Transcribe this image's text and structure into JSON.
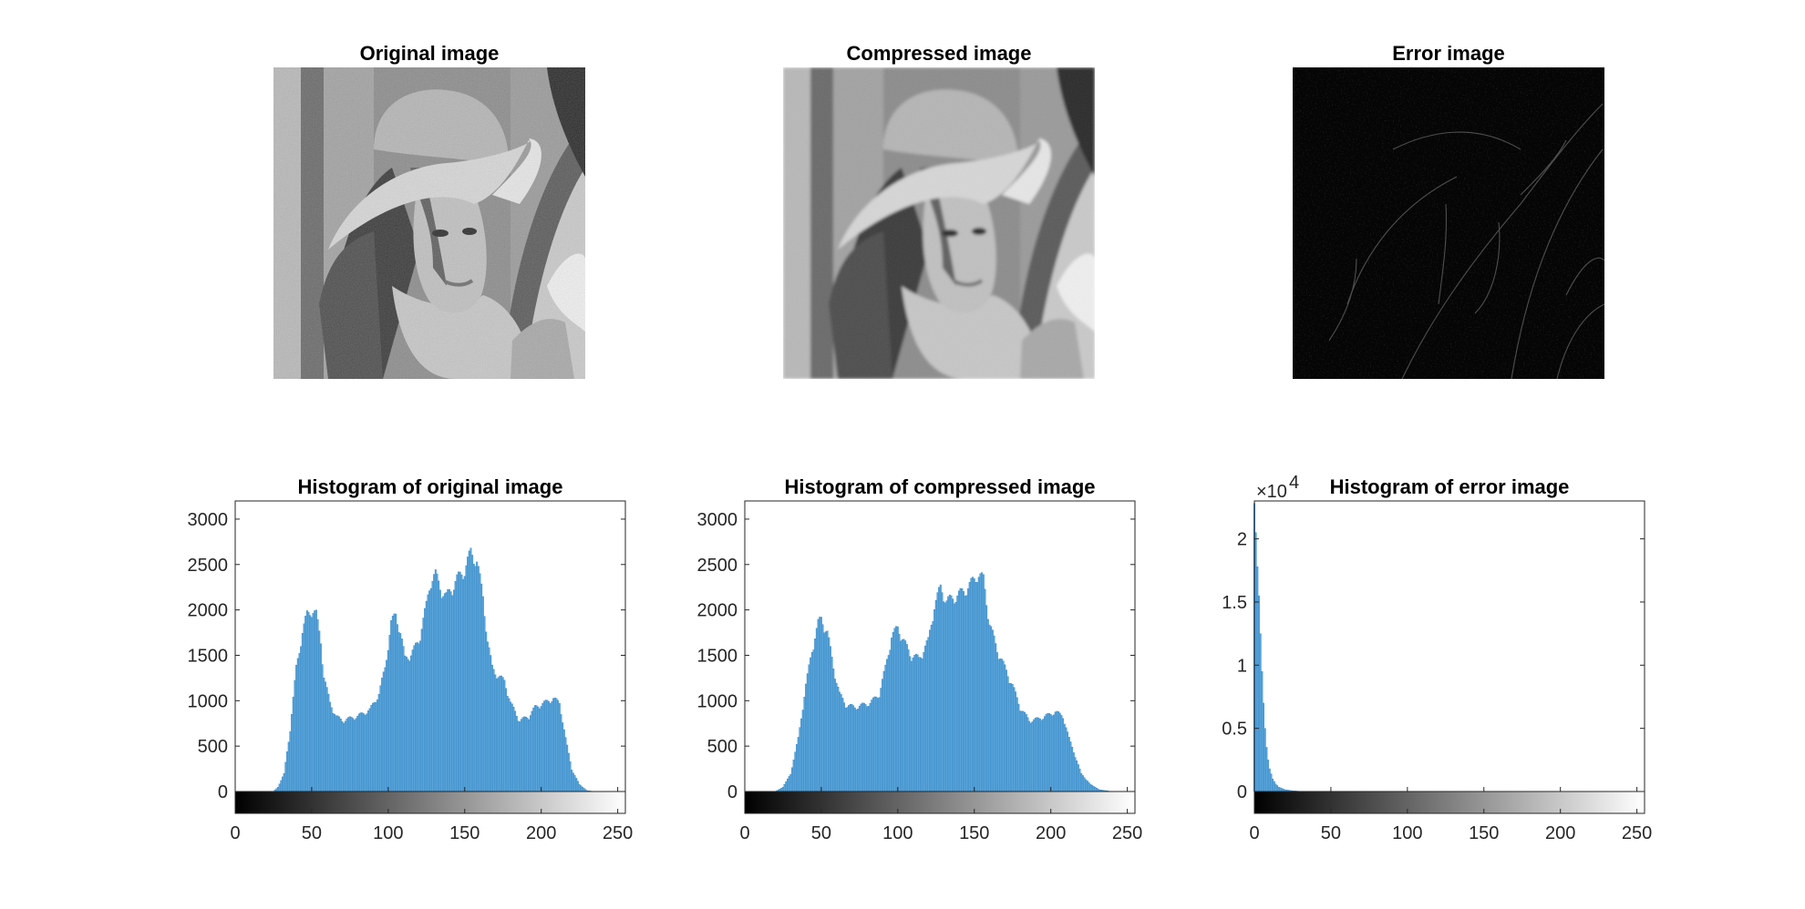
{
  "figure": {
    "images": [
      {
        "title": "Original image",
        "kind": "original"
      },
      {
        "title": "Compressed image",
        "kind": "compressed"
      },
      {
        "title": "Error image",
        "kind": "error"
      }
    ]
  },
  "chart_data": [
    {
      "type": "bar",
      "title": "Histogram of original image",
      "xlabel": "",
      "ylabel": "",
      "xlim": [
        0,
        255
      ],
      "ylim": [
        0,
        3200
      ],
      "xticks": [
        0,
        50,
        100,
        150,
        200,
        250
      ],
      "yticks": [
        0,
        500,
        1000,
        1500,
        2000,
        2500,
        3000
      ],
      "yexponent": "",
      "colorbar": "gray",
      "bar_color": "#5aa6db",
      "keypoints": [
        [
          0,
          0
        ],
        [
          25,
          0
        ],
        [
          28,
          50
        ],
        [
          32,
          200
        ],
        [
          36,
          700
        ],
        [
          40,
          1400
        ],
        [
          44,
          1800
        ],
        [
          47,
          2000
        ],
        [
          50,
          2050
        ],
        [
          53,
          2000
        ],
        [
          56,
          1700
        ],
        [
          58,
          1300
        ],
        [
          62,
          1000
        ],
        [
          66,
          850
        ],
        [
          70,
          800
        ],
        [
          80,
          850
        ],
        [
          88,
          920
        ],
        [
          94,
          1100
        ],
        [
          98,
          1400
        ],
        [
          102,
          1900
        ],
        [
          105,
          2000
        ],
        [
          108,
          1800
        ],
        [
          111,
          1500
        ],
        [
          115,
          1550
        ],
        [
          120,
          1700
        ],
        [
          125,
          2100
        ],
        [
          128,
          2400
        ],
        [
          131,
          2450
        ],
        [
          134,
          2300
        ],
        [
          138,
          2200
        ],
        [
          142,
          2300
        ],
        [
          145,
          2400
        ],
        [
          150,
          2500
        ],
        [
          154,
          2700
        ],
        [
          158,
          2600
        ],
        [
          162,
          2200
        ],
        [
          165,
          1700
        ],
        [
          168,
          1400
        ],
        [
          172,
          1300
        ],
        [
          176,
          1250
        ],
        [
          180,
          1000
        ],
        [
          186,
          800
        ],
        [
          192,
          850
        ],
        [
          196,
          950
        ],
        [
          202,
          1000
        ],
        [
          208,
          1050
        ],
        [
          212,
          1000
        ],
        [
          216,
          600
        ],
        [
          220,
          250
        ],
        [
          225,
          80
        ],
        [
          230,
          10
        ],
        [
          235,
          0
        ],
        [
          255,
          0
        ]
      ]
    },
    {
      "type": "bar",
      "title": "Histogram of compressed image",
      "xlabel": "",
      "ylabel": "",
      "xlim": [
        0,
        255
      ],
      "ylim": [
        0,
        3200
      ],
      "xticks": [
        0,
        50,
        100,
        150,
        200,
        250
      ],
      "yticks": [
        0,
        500,
        1000,
        1500,
        2000,
        2500,
        3000
      ],
      "yexponent": "",
      "colorbar": "gray",
      "bar_color": "#5aa6db",
      "keypoints": [
        [
          0,
          0
        ],
        [
          20,
          0
        ],
        [
          25,
          50
        ],
        [
          30,
          200
        ],
        [
          35,
          600
        ],
        [
          40,
          1200
        ],
        [
          44,
          1600
        ],
        [
          48,
          1900
        ],
        [
          50,
          1950
        ],
        [
          54,
          1800
        ],
        [
          58,
          1400
        ],
        [
          62,
          1100
        ],
        [
          66,
          980
        ],
        [
          72,
          950
        ],
        [
          82,
          1000
        ],
        [
          88,
          1100
        ],
        [
          92,
          1400
        ],
        [
          96,
          1750
        ],
        [
          100,
          1850
        ],
        [
          104,
          1700
        ],
        [
          108,
          1550
        ],
        [
          114,
          1500
        ],
        [
          120,
          1700
        ],
        [
          124,
          2100
        ],
        [
          128,
          2300
        ],
        [
          132,
          2150
        ],
        [
          138,
          2200
        ],
        [
          146,
          2300
        ],
        [
          152,
          2450
        ],
        [
          156,
          2400
        ],
        [
          160,
          1900
        ],
        [
          165,
          1600
        ],
        [
          170,
          1400
        ],
        [
          175,
          1200
        ],
        [
          180,
          950
        ],
        [
          186,
          800
        ],
        [
          192,
          820
        ],
        [
          198,
          860
        ],
        [
          203,
          900
        ],
        [
          208,
          850
        ],
        [
          212,
          600
        ],
        [
          216,
          400
        ],
        [
          220,
          200
        ],
        [
          226,
          80
        ],
        [
          232,
          20
        ],
        [
          240,
          0
        ],
        [
          255,
          0
        ]
      ]
    },
    {
      "type": "bar",
      "title": "Histogram of error image",
      "xlabel": "",
      "ylabel": "",
      "xlim": [
        0,
        255
      ],
      "ylim": [
        0,
        23000
      ],
      "xticks": [
        0,
        50,
        100,
        150,
        200,
        250
      ],
      "yticks": [
        0,
        5000,
        10000,
        15000,
        20000
      ],
      "ytick_labels": [
        "0",
        "0.5",
        "1",
        "1.5",
        "2"
      ],
      "yexponent": "4",
      "colorbar": "gray",
      "bar_color": "#5aa6db",
      "keypoints": [
        [
          0,
          22800
        ],
        [
          1,
          20500
        ],
        [
          2,
          17800
        ],
        [
          3,
          15500
        ],
        [
          4,
          12500
        ],
        [
          5,
          9500
        ],
        [
          6,
          7000
        ],
        [
          7,
          5000
        ],
        [
          8,
          3500
        ],
        [
          9,
          2500
        ],
        [
          10,
          1800
        ],
        [
          12,
          1000
        ],
        [
          14,
          600
        ],
        [
          16,
          350
        ],
        [
          20,
          150
        ],
        [
          25,
          60
        ],
        [
          30,
          20
        ],
        [
          40,
          5
        ],
        [
          50,
          0
        ],
        [
          255,
          0
        ]
      ]
    }
  ]
}
